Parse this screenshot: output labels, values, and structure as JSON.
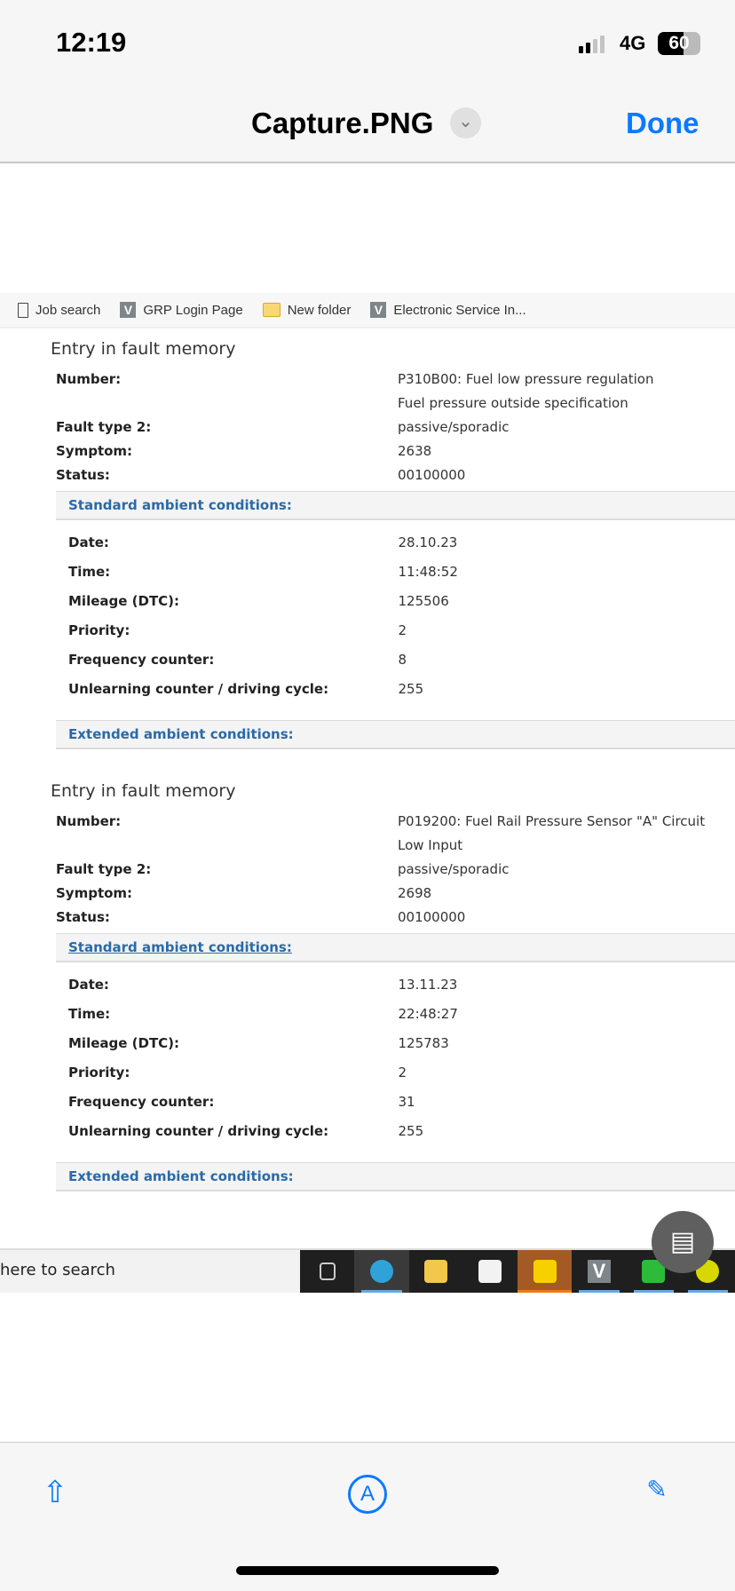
{
  "status_bar": {
    "time": "12:19",
    "network": "4G",
    "battery": "60",
    "battery_percent": 60,
    "signal_bars": 2
  },
  "viewer": {
    "title": "Capture.PNG",
    "done_label": "Done"
  },
  "bookmarks": [
    {
      "label": "Job search",
      "icon": "document-icon"
    },
    {
      "label": "GRP Login Page",
      "icon": "v-icon"
    },
    {
      "label": "New folder",
      "icon": "folder-icon"
    },
    {
      "label": "Electronic Service In...",
      "icon": "v-icon"
    }
  ],
  "entries": [
    {
      "heading": "Entry in fault memory",
      "fields": [
        {
          "label": "Number:",
          "value": "P310B00:  Fuel low pressure regulation"
        },
        {
          "label": "",
          "value": "Fuel pressure outside specification"
        },
        {
          "label": "Fault type 2:",
          "value": "passive/sporadic"
        },
        {
          "label": "Symptom:",
          "value": "2638"
        },
        {
          "label": "Status:",
          "value": "00100000"
        }
      ],
      "standard_label": "Standard ambient conditions:",
      "standard_underlined": false,
      "standard": [
        {
          "label": "Date:",
          "value": "28.10.23"
        },
        {
          "label": "Time:",
          "value": "11:48:52"
        },
        {
          "label": "Mileage (DTC):",
          "value": "125506"
        },
        {
          "label": "Priority:",
          "value": "2"
        },
        {
          "label": "Frequency counter:",
          "value": "8"
        },
        {
          "label": "Unlearning counter / driving cycle:",
          "value": "255"
        }
      ],
      "extended_label": "Extended ambient conditions:"
    },
    {
      "heading": "Entry in fault memory",
      "fields": [
        {
          "label": "Number:",
          "value": "P019200:  Fuel Rail Pressure Sensor \"A\" Circuit Low Input"
        },
        {
          "label": "Fault type 2:",
          "value": "passive/sporadic"
        },
        {
          "label": "Symptom:",
          "value": "2698"
        },
        {
          "label": "Status:",
          "value": "00100000"
        }
      ],
      "standard_label": "Standard ambient conditions:",
      "standard_underlined": true,
      "standard": [
        {
          "label": "Date:",
          "value": "13.11.23"
        },
        {
          "label": "Time:",
          "value": "22:48:27"
        },
        {
          "label": "Mileage (DTC):",
          "value": "125783"
        },
        {
          "label": "Priority:",
          "value": "2"
        },
        {
          "label": "Frequency counter:",
          "value": "31"
        },
        {
          "label": "Unlearning counter / driving cycle:",
          "value": "255"
        }
      ],
      "extended_label": "Extended ambient conditions:"
    }
  ],
  "taskbar": {
    "search_text": "here to search",
    "apps": [
      {
        "icon": "task-view-icon",
        "color": "#1f1f1f"
      },
      {
        "icon": "edge-icon",
        "color": "#2fa3d9",
        "active": true
      },
      {
        "icon": "file-explorer-icon",
        "color": "#f3c74b"
      },
      {
        "icon": "microsoft-store-icon",
        "color": "#f2f2f2"
      },
      {
        "icon": "sticky-notes-icon",
        "color": "#f8d000",
        "highlight": "#a35a25"
      },
      {
        "icon": "v-app-icon",
        "color": "#7f8689",
        "active": true
      },
      {
        "icon": "chat-app-icon",
        "color": "#2dbb3a",
        "active": true
      },
      {
        "icon": "wrench-app-icon",
        "color": "#d8d800",
        "active": true
      }
    ]
  },
  "toolbar": {
    "share": "share-icon",
    "markup": "markup-icon",
    "edit": "edit-icon"
  }
}
